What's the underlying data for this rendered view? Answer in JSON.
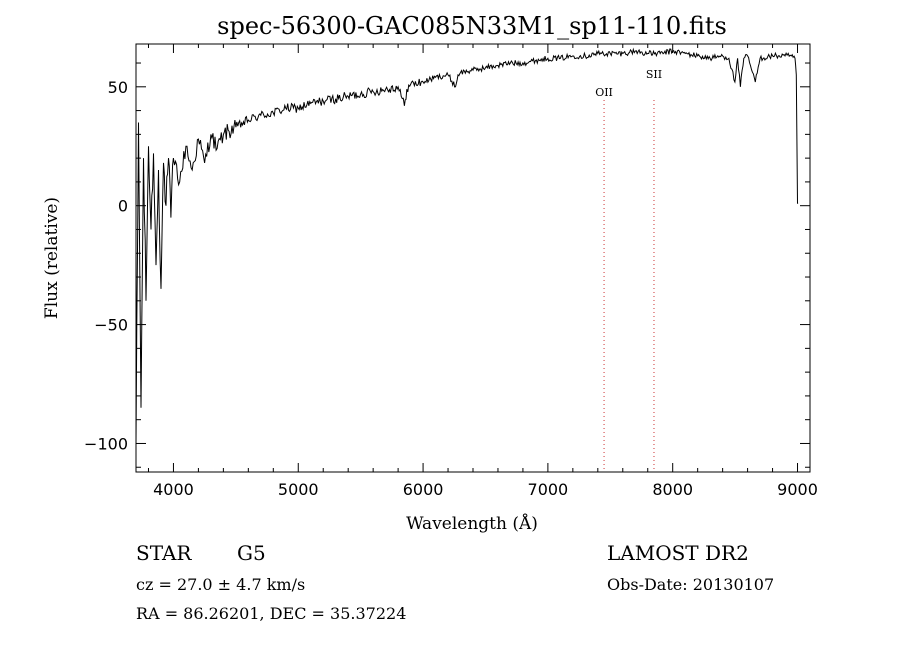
{
  "chart_data": {
    "type": "line",
    "title": "spec-56300-GAC085N33M1_sp11-110.fits",
    "xlabel": "Wavelength (Å)",
    "ylabel": "Flux (relative)",
    "xlim": [
      3700,
      9100
    ],
    "ylim": [
      -112,
      68
    ],
    "x_ticks": [
      4000,
      5000,
      6000,
      7000,
      8000,
      9000
    ],
    "y_ticks": [
      -100,
      -50,
      0,
      50
    ],
    "series": [
      {
        "x": [
          3700,
          3720,
          3740,
          3760,
          3780,
          3800,
          3820,
          3840,
          3860,
          3880,
          3900,
          3920,
          3940,
          3960,
          3980,
          4000,
          4050,
          4100,
          4150,
          4200,
          4250,
          4300,
          4350,
          4400,
          4500,
          4600,
          4700,
          4800,
          4900,
          5000,
          5100,
          5200,
          5300,
          5400,
          5500,
          5600,
          5700,
          5800,
          5850,
          5870,
          5900,
          6000,
          6100,
          6200,
          6260,
          6280,
          6300,
          6400,
          6500,
          6600,
          6700,
          6800,
          6900,
          7000,
          7100,
          7200,
          7300,
          7400,
          7500,
          7600,
          7700,
          7800,
          7900,
          8000,
          8100,
          8200,
          8300,
          8400,
          8450,
          8498,
          8520,
          8542,
          8570,
          8600,
          8662,
          8700,
          8800,
          8900,
          8950,
          8980,
          8990,
          9000,
          9005
        ],
        "y": [
          -100,
          35,
          -85,
          20,
          -40,
          25,
          -10,
          22,
          -25,
          15,
          -35,
          18,
          0,
          20,
          -5,
          20,
          10,
          25,
          15,
          28,
          18,
          30,
          24,
          30,
          33,
          36,
          38,
          39,
          41,
          41,
          43,
          44,
          45,
          46,
          47,
          48,
          49,
          50,
          42,
          49,
          51,
          52,
          54,
          55,
          50,
          55,
          56,
          57,
          58,
          59,
          60,
          60,
          61,
          62,
          62,
          63,
          63,
          64,
          64,
          64,
          65,
          64,
          64,
          65,
          64,
          63,
          62,
          63,
          62,
          52,
          62,
          50,
          62,
          63,
          52,
          62,
          63,
          63,
          63,
          62,
          55,
          1,
          1
        ]
      }
    ],
    "annotations": [
      {
        "label": "OII",
        "x": 7450
      },
      {
        "label": "SII",
        "x": 7850
      }
    ],
    "grid": false,
    "legend": "none"
  },
  "info": {
    "star_class": "STAR",
    "subclass": "G5",
    "cz": "cz = 27.0 ± 4.7 km/s",
    "radec": "RA =  86.26201, DEC =  35.37224",
    "survey": "LAMOST DR2",
    "obs_date": "Obs-Date: 20130107"
  }
}
